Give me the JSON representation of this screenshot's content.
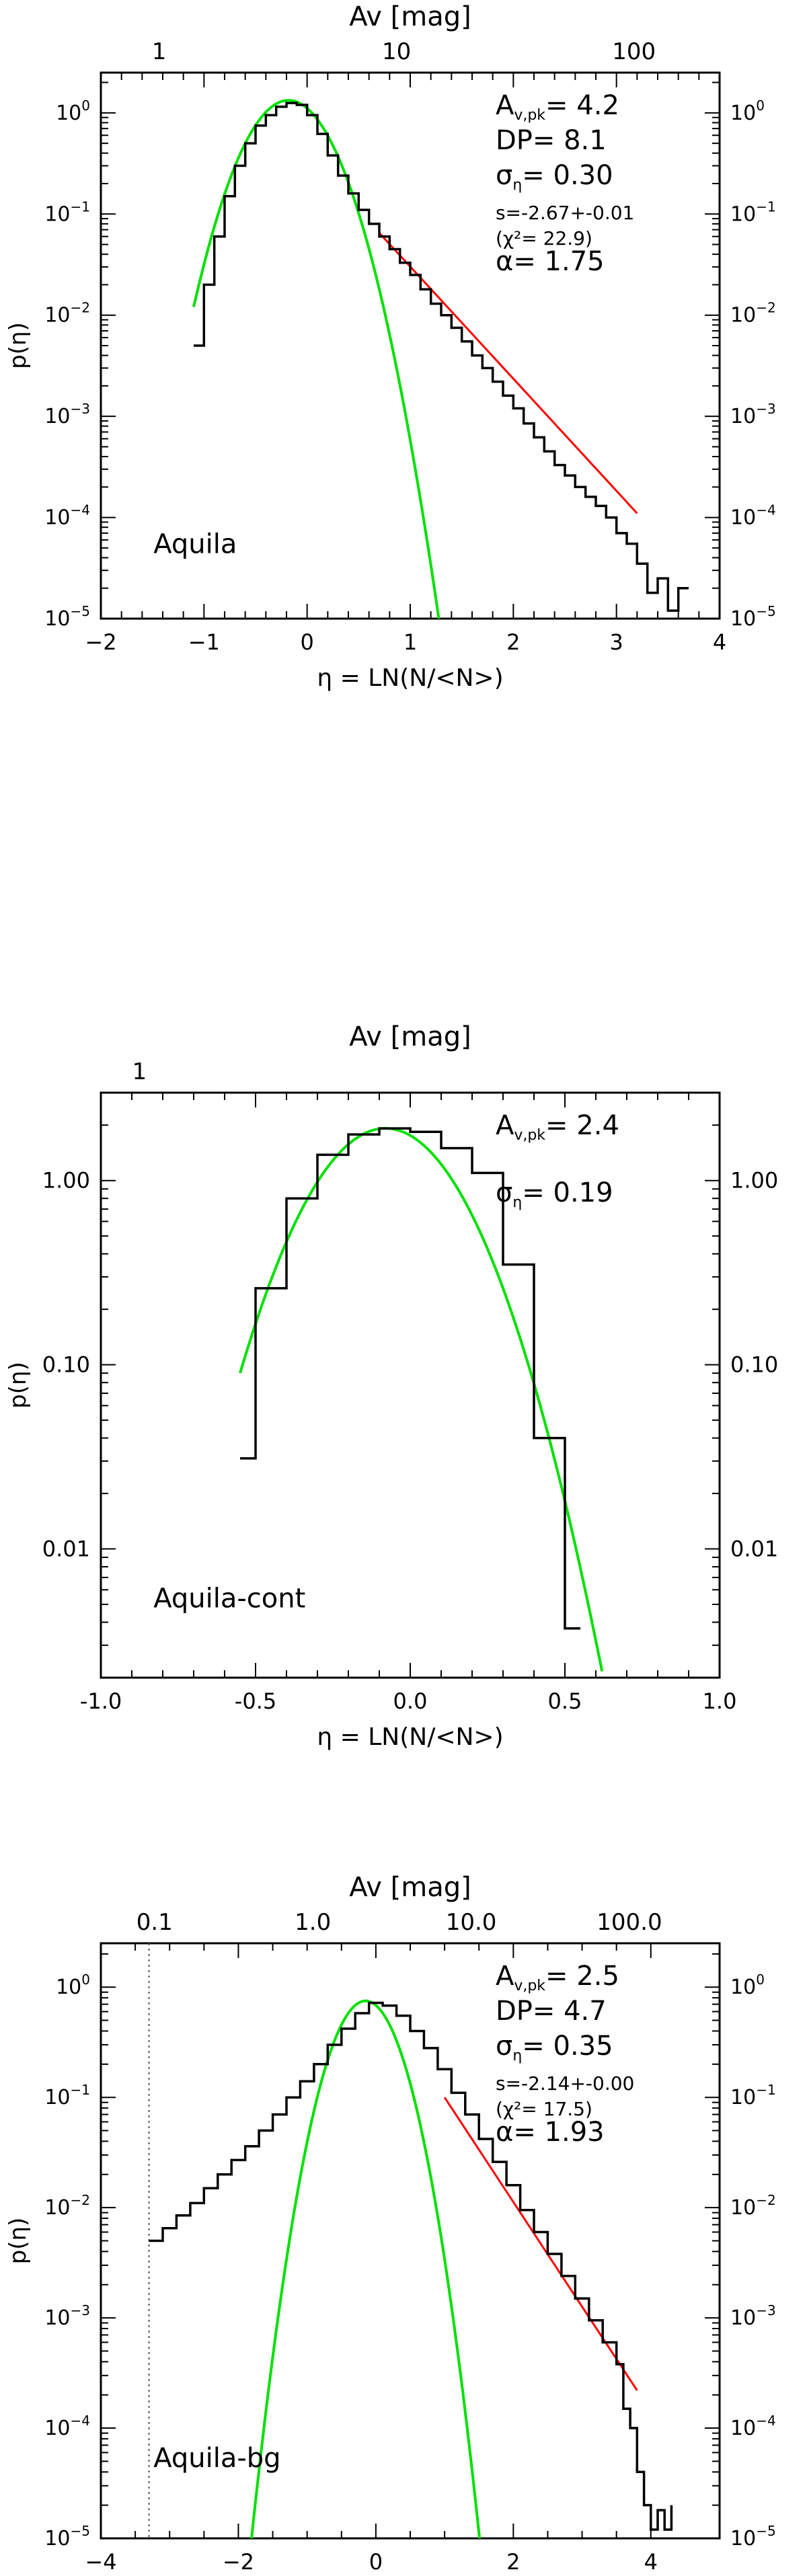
{
  "chart_data": [
    {
      "type": "line",
      "panel_label": "Aquila",
      "xlabel": "η = LN(N/<N>)",
      "ylabel": "p(η)",
      "top_axis_label": "Av [mag]",
      "top_ticks": [
        {
          "value": 1,
          "label": "1"
        },
        {
          "value": 10,
          "label": "10"
        },
        {
          "value": 100,
          "label": "100"
        }
      ],
      "av_peak": 4.2,
      "xlim": [
        -2,
        4
      ],
      "ylim": [
        1e-05,
        2.5
      ],
      "yscale": "log",
      "x_ticks": [
        -2,
        -1,
        0,
        1,
        2,
        3,
        4
      ],
      "y_tick_format": "exp",
      "y_ticks": [
        1e-05,
        0.0001,
        0.001,
        0.01,
        0.1,
        1
      ],
      "dashed_vline": null,
      "annotations": [
        {
          "main": "A",
          "sub": "v,pk",
          "rest": "= 4.2",
          "size": "lg"
        },
        {
          "main": "DP= 8.1",
          "size": "lg"
        },
        {
          "main": "σ",
          "sub": "η",
          "rest": "= 0.30",
          "size": "lg"
        },
        {
          "main": "s=-2.67+-0.01",
          "size": "sm"
        },
        {
          "main": "(χ²= 22.9)",
          "size": "sm"
        },
        {
          "main": "α= 1.75",
          "size": "lg"
        }
      ],
      "series": [
        {
          "kind": "histogram",
          "color": "#000000",
          "x": [
            -1.1,
            -1.0,
            -0.9,
            -0.8,
            -0.7,
            -0.6,
            -0.5,
            -0.4,
            -0.3,
            -0.2,
            -0.1,
            0.0,
            0.1,
            0.2,
            0.3,
            0.4,
            0.5,
            0.6,
            0.7,
            0.8,
            0.9,
            1.0,
            1.1,
            1.2,
            1.3,
            1.4,
            1.5,
            1.6,
            1.7,
            1.8,
            1.9,
            2.0,
            2.1,
            2.2,
            2.3,
            2.4,
            2.5,
            2.6,
            2.7,
            2.8,
            2.9,
            3.0,
            3.1,
            3.2,
            3.3,
            3.4,
            3.5,
            3.6,
            3.7
          ],
          "y": [
            0.005,
            0.02,
            0.06,
            0.15,
            0.3,
            0.5,
            0.75,
            0.95,
            1.15,
            1.25,
            1.2,
            0.95,
            0.62,
            0.38,
            0.24,
            0.16,
            0.11,
            0.08,
            0.06,
            0.045,
            0.033,
            0.025,
            0.018,
            0.013,
            0.01,
            0.0075,
            0.0055,
            0.004,
            0.003,
            0.0022,
            0.0016,
            0.0012,
            0.00085,
            0.00062,
            0.00045,
            0.00033,
            0.00026,
            0.0002,
            0.00016,
            0.00013,
            0.0001,
            7e-05,
            5.5e-05,
            3.5e-05,
            1.8e-05,
            2.5e-05,
            1.2e-05,
            2e-05,
            2e-05
          ]
        },
        {
          "kind": "lognormal",
          "color": "#00e000",
          "mu": -0.18,
          "sigma": 0.3,
          "peak": 1.33,
          "x_range": [
            -1.1,
            1.35
          ]
        },
        {
          "kind": "powerlaw",
          "color": "#ff0000",
          "x_range": [
            0.7,
            3.2
          ],
          "y_range": [
            0.065,
            0.00011
          ]
        }
      ]
    },
    {
      "type": "line",
      "panel_label": "Aquila-cont",
      "xlabel": "η = LN(N/<N>)",
      "ylabel": "p(η)",
      "top_axis_label": "Av [mag]",
      "top_ticks": [
        {
          "value": 1,
          "label": "1"
        }
      ],
      "av_peak": 2.4,
      "xlim": [
        -1.0,
        1.0
      ],
      "ylim": [
        0.002,
        3.0
      ],
      "yscale": "log",
      "x_ticks": [
        -1.0,
        -0.5,
        0.0,
        0.5,
        1.0
      ],
      "x_tick_labels": [
        "-1.0",
        "-0.5",
        "0.0",
        "0.5",
        "1.0"
      ],
      "y_tick_format": "dec",
      "y_ticks": [
        0.01,
        0.1,
        1.0
      ],
      "y_tick_labels": [
        "0.01",
        "0.10",
        "1.00"
      ],
      "dashed_vline": null,
      "annotations": [
        {
          "main": "A",
          "sub": "v,pk",
          "rest": "= 2.4",
          "size": "lg"
        },
        {
          "main": "σ",
          "sub": "η",
          "rest": "= 0.19",
          "size": "lg"
        }
      ],
      "series": [
        {
          "kind": "histogram",
          "color": "#000000",
          "x": [
            -0.55,
            -0.5,
            -0.4,
            -0.3,
            -0.2,
            -0.1,
            0.0,
            0.1,
            0.2,
            0.3,
            0.4,
            0.5,
            0.55
          ],
          "y": [
            0.031,
            0.26,
            0.8,
            1.38,
            1.78,
            1.92,
            1.84,
            1.5,
            1.1,
            0.35,
            0.04,
            0.0037,
            0.0037
          ]
        },
        {
          "kind": "lognormal",
          "color": "#00e000",
          "mu": -0.08,
          "sigma": 0.19,
          "peak": 1.92,
          "x_range": [
            -0.55,
            0.62
          ]
        }
      ]
    },
    {
      "type": "line",
      "panel_label": "Aquila-bg",
      "xlabel": "η = LN(N/<N>)",
      "ylabel": "p(η)",
      "top_axis_label": "Av [mag]",
      "top_ticks": [
        {
          "value": 0.1,
          "label": "0.1"
        },
        {
          "value": 1,
          "label": "1.0"
        },
        {
          "value": 10,
          "label": "10.0"
        },
        {
          "value": 100,
          "label": "100.0"
        }
      ],
      "av_peak": 2.5,
      "xlim": [
        -4,
        5
      ],
      "ylim": [
        1e-05,
        2.5
      ],
      "yscale": "log",
      "x_ticks": [
        -4,
        -2,
        0,
        2,
        4
      ],
      "y_tick_format": "exp",
      "y_ticks": [
        1e-05,
        0.0001,
        0.001,
        0.01,
        0.1,
        1
      ],
      "dashed_vline": -3.3,
      "annotations": [
        {
          "main": "A",
          "sub": "v,pk",
          "rest": "= 2.5",
          "size": "lg"
        },
        {
          "main": "DP= 4.7",
          "size": "lg"
        },
        {
          "main": "σ",
          "sub": "η",
          "rest": "= 0.35",
          "size": "lg"
        },
        {
          "main": "s=-2.14+-0.00",
          "size": "sm"
        },
        {
          "main": "(χ²= 17.5)",
          "size": "sm"
        },
        {
          "main": "α= 1.93",
          "size": "lg"
        }
      ],
      "series": [
        {
          "kind": "histogram",
          "color": "#000000",
          "x": [
            -3.3,
            -3.1,
            -2.9,
            -2.7,
            -2.5,
            -2.3,
            -2.1,
            -1.9,
            -1.7,
            -1.5,
            -1.3,
            -1.1,
            -0.9,
            -0.7,
            -0.5,
            -0.3,
            -0.1,
            0.1,
            0.3,
            0.5,
            0.7,
            0.9,
            1.1,
            1.3,
            1.5,
            1.7,
            1.9,
            2.1,
            2.3,
            2.5,
            2.7,
            2.9,
            3.1,
            3.3,
            3.5,
            3.6,
            3.7,
            3.8,
            3.9,
            4.0,
            4.1,
            4.2,
            4.3
          ],
          "y": [
            0.005,
            0.0065,
            0.0085,
            0.011,
            0.015,
            0.02,
            0.027,
            0.036,
            0.05,
            0.07,
            0.1,
            0.14,
            0.2,
            0.3,
            0.42,
            0.58,
            0.72,
            0.68,
            0.55,
            0.4,
            0.28,
            0.18,
            0.11,
            0.07,
            0.042,
            0.026,
            0.016,
            0.0095,
            0.006,
            0.0038,
            0.0024,
            0.0015,
            0.00095,
            0.0006,
            0.00038,
            0.00015,
            0.0001,
            4e-05,
            2e-05,
            1.2e-05,
            1.8e-05,
            1.2e-05,
            2e-05
          ]
        },
        {
          "kind": "lognormal",
          "color": "#00e000",
          "mu": -0.15,
          "sigma": 0.35,
          "peak": 0.75,
          "x_range": [
            -1.85,
            1.55
          ]
        },
        {
          "kind": "powerlaw",
          "color": "#ff0000",
          "x_range": [
            1.0,
            3.8
          ],
          "y_range": [
            0.1,
            0.00022
          ]
        }
      ]
    }
  ]
}
